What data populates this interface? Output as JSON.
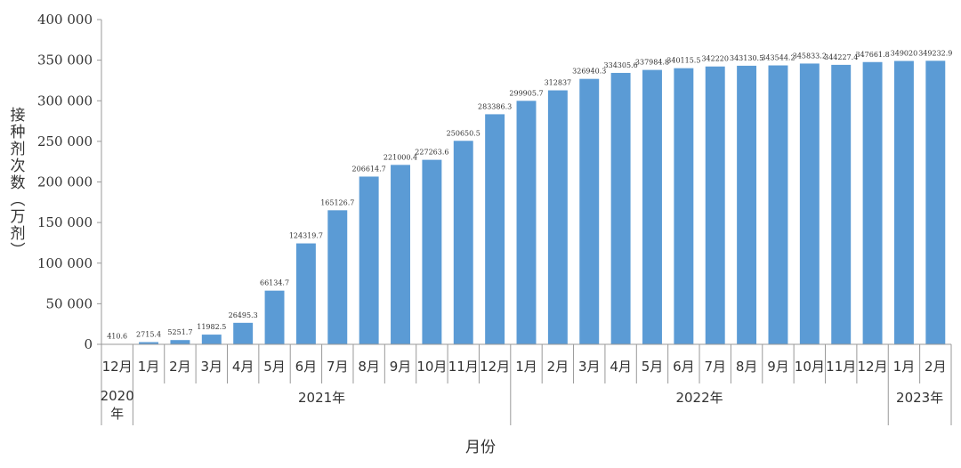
{
  "chart_data": {
    "type": "bar",
    "ylabel": "接种剂次数（万剂）",
    "xlabel": "月份",
    "ylim": [
      0,
      400000
    ],
    "yticks": [
      "0",
      "50 000",
      "100 000",
      "150 000",
      "200 000",
      "250 000",
      "300 000",
      "350 000",
      "400 000"
    ],
    "grid": false,
    "bar_color": "#5b9bd5",
    "categories": [
      "12月",
      "1月",
      "2月",
      "3月",
      "4月",
      "5月",
      "6月",
      "7月",
      "8月",
      "9月",
      "10月",
      "11月",
      "12月",
      "1月",
      "2月",
      "3月",
      "4月",
      "5月",
      "6月",
      "7月",
      "8月",
      "9月",
      "10月",
      "11月",
      "12月",
      "1月",
      "2月"
    ],
    "values": [
      410.6,
      2715.4,
      5251.7,
      11982.5,
      26495.3,
      66134.7,
      124319.7,
      165126.7,
      206614.7,
      221000.4,
      227263.6,
      250650.5,
      283386.3,
      299905.7,
      312837,
      326940.3,
      334305.6,
      337984.8,
      340115.5,
      342220,
      343130.5,
      343544.2,
      345833.2,
      344227.4,
      347661.8,
      349020,
      349232.9
    ],
    "value_labels": [
      "410.6",
      "2715.4",
      "5251.7",
      "11982.5",
      "26495.3",
      "66134.7",
      "124319.7",
      "165126.7",
      "206614.7",
      "221000.4",
      "227263.6",
      "250650.5",
      "283386.3",
      "299905.7",
      "312837",
      "326940.3",
      "334305.6",
      "337984.8",
      "340115.5",
      "342220",
      "343130.5",
      "343544.2",
      "345833.2",
      "344227.4",
      "347661.8",
      "349020",
      "349232.9"
    ],
    "year_groups": [
      {
        "label": "2020\n年",
        "count": 1
      },
      {
        "label": "2021年",
        "count": 12
      },
      {
        "label": "2022年",
        "count": 12
      },
      {
        "label": "2023年",
        "count": 2
      }
    ]
  }
}
